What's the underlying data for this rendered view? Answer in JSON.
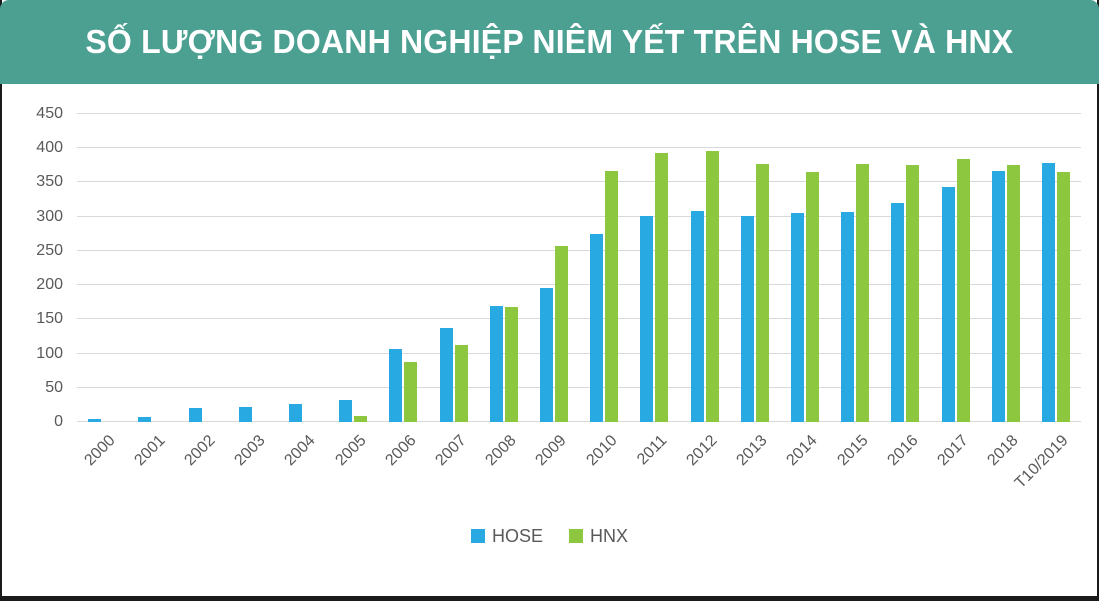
{
  "header": {
    "title": "SỐ LƯỢNG DOANH NGHIỆP NIÊM YẾT TRÊN HOSE VÀ HNX",
    "background_color": "#4CA092",
    "title_color": "#FFFFFF"
  },
  "chart_data": {
    "type": "bar",
    "title": "SỐ LƯỢNG DOANH NGHIỆP NIÊM YẾT TRÊN HOSE VÀ HNX",
    "categories": [
      "2000",
      "2001",
      "2002",
      "2003",
      "2004",
      "2005",
      "2006",
      "2007",
      "2008",
      "2009",
      "2010",
      "2011",
      "2012",
      "2013",
      "2014",
      "2015",
      "2016",
      "2017",
      "2018",
      "T10/2019"
    ],
    "series": [
      {
        "name": "HOSE",
        "color": "#29A9E1",
        "values": [
          5,
          8,
          20,
          22,
          26,
          32,
          106,
          138,
          170,
          196,
          275,
          301,
          308,
          301,
          305,
          307,
          320,
          344,
          367,
          378
        ]
      },
      {
        "name": "HNX",
        "color": "#8DC63F",
        "values": [
          0,
          0,
          0,
          0,
          0,
          9,
          87,
          112,
          168,
          257,
          367,
          393,
          396,
          377,
          365,
          377,
          376,
          384,
          376,
          366
        ]
      }
    ],
    "xlabel": "",
    "ylabel": "",
    "ylim": [
      0,
      450
    ],
    "yticks": [
      0,
      50,
      100,
      150,
      200,
      250,
      300,
      350,
      400,
      450
    ],
    "grid": true,
    "gridline_color": "#D9D9D9",
    "axis_text_color": "#595959",
    "legend_position": "bottom"
  },
  "legend": {
    "items": [
      {
        "label": "HOSE",
        "color": "#29A9E1"
      },
      {
        "label": "HNX",
        "color": "#8DC63F"
      }
    ]
  }
}
